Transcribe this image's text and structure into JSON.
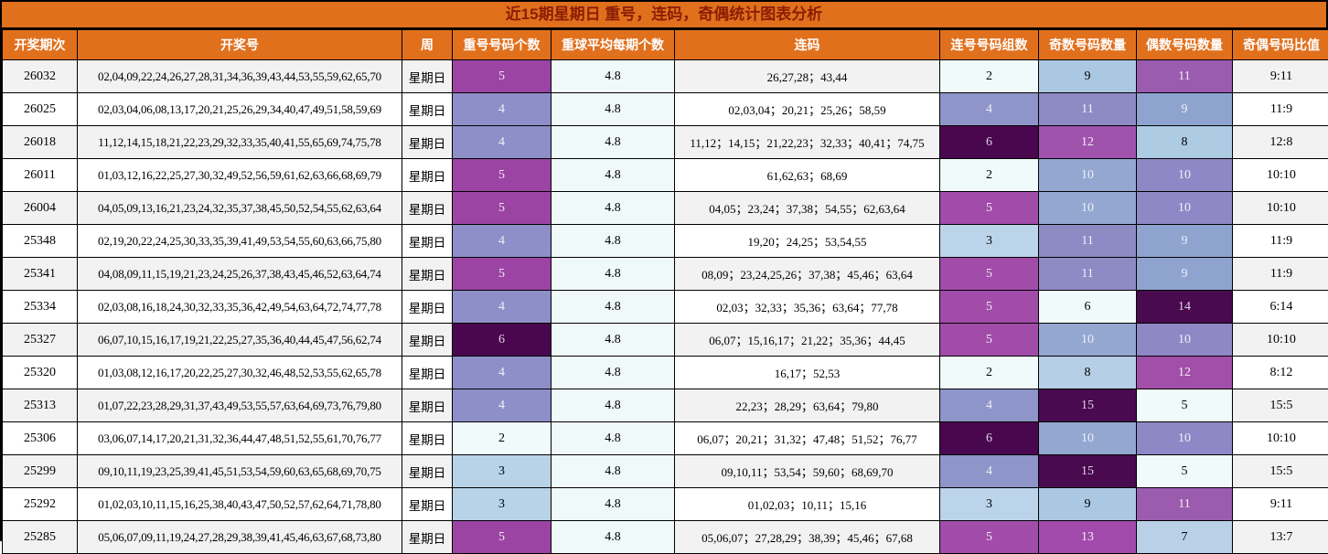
{
  "chart_data": {
    "type": "table",
    "title": "近15期星期日 重号，连码，奇偶统计图表分析",
    "palette": {
      "header_bg": "#e1701d",
      "title_text": "#8b1e04",
      "header_text": "#ffffff",
      "row_stripe": "#f2f2f2",
      "avg_col_bg": "#eff9fa",
      "grid_border": "#000000",
      "scale_low": "#f0fafa",
      "scale_mid_blue": "#b8d2e8",
      "scale_mid_purple": "#9c44a4",
      "scale_high_dark": "#490a50"
    },
    "columns": [
      "开奖期次",
      "开奖号",
      "周",
      "重号号码个数",
      "重球平均每期个数",
      "连码",
      "连号号码组数",
      "奇数号码数量",
      "偶数号码数量",
      "奇偶号码比值"
    ],
    "rows": [
      {
        "period": "26032",
        "numbers": "02,04,09,22,24,26,27,28,31,34,36,39,43,44,53,55,59,62,65,70",
        "week": "星期日",
        "repeat": {
          "v": "5",
          "bg": "#9c44a4",
          "fg": "#f2eaf4"
        },
        "avg": "4.8",
        "consecutive": "26,27,28；43,44",
        "group": {
          "v": "2",
          "bg": "#f0fafa",
          "fg": "#000000"
        },
        "odd": {
          "v": "9",
          "bg": "#abc8e3",
          "fg": "#000000"
        },
        "even": {
          "v": "11",
          "bg": "#9b5cb0",
          "fg": "#f2eaf4"
        },
        "ratio": "9:11"
      },
      {
        "period": "26025",
        "numbers": "02,03,04,06,08,13,17,20,21,25,26,29,34,40,47,49,51,58,59,69",
        "week": "星期日",
        "repeat": {
          "v": "4",
          "bg": "#8e8fc9",
          "fg": "#eef0f8"
        },
        "avg": "4.8",
        "consecutive": "02,03,04；20,21；25,26；58,59",
        "group": {
          "v": "4",
          "bg": "#8d95c9",
          "fg": "#eef0f8"
        },
        "odd": {
          "v": "11",
          "bg": "#8d8ac4",
          "fg": "#eef0f8"
        },
        "even": {
          "v": "9",
          "bg": "#8fa3cf",
          "fg": "#eef0f8"
        },
        "ratio": "11:9"
      },
      {
        "period": "26018",
        "numbers": "11,12,14,15,18,21,22,23,29,32,33,35,40,41,55,65,69,74,75,78",
        "week": "星期日",
        "repeat": {
          "v": "4",
          "bg": "#8e8fc9",
          "fg": "#eef0f8"
        },
        "avg": "4.8",
        "consecutive": "11,12；14,15；21,22,23；32,33；40,41；74,75",
        "group": {
          "v": "6",
          "bg": "#49074f",
          "fg": "#ddd3e0"
        },
        "odd": {
          "v": "12",
          "bg": "#a053ad",
          "fg": "#f2eaf4"
        },
        "even": {
          "v": "8",
          "bg": "#aecbe4",
          "fg": "#000000"
        },
        "ratio": "12:8"
      },
      {
        "period": "26011",
        "numbers": "01,03,12,16,22,25,27,30,32,49,52,56,59,61,62,63,66,68,69,79",
        "week": "星期日",
        "repeat": {
          "v": "5",
          "bg": "#9c44a4",
          "fg": "#f2eaf4"
        },
        "avg": "4.8",
        "consecutive": "61,62,63；68,69",
        "group": {
          "v": "2",
          "bg": "#f0fafa",
          "fg": "#000000"
        },
        "odd": {
          "v": "10",
          "bg": "#93a7d1",
          "fg": "#eef0f8"
        },
        "even": {
          "v": "10",
          "bg": "#9088c6",
          "fg": "#eef0f8"
        },
        "ratio": "10:10"
      },
      {
        "period": "26004",
        "numbers": "04,05,09,13,16,21,23,24,32,35,37,38,45,50,52,54,55,62,63,64",
        "week": "星期日",
        "repeat": {
          "v": "5",
          "bg": "#9c44a4",
          "fg": "#f2eaf4"
        },
        "avg": "4.8",
        "consecutive": "04,05；23,24；37,38；54,55；62,63,64",
        "group": {
          "v": "5",
          "bg": "#a24caa",
          "fg": "#f2eaf4"
        },
        "odd": {
          "v": "10",
          "bg": "#93a7d1",
          "fg": "#eef0f8"
        },
        "even": {
          "v": "10",
          "bg": "#9088c6",
          "fg": "#eef0f8"
        },
        "ratio": "10:10"
      },
      {
        "period": "25348",
        "numbers": "02,19,20,22,24,25,30,33,35,39,41,49,53,54,55,60,63,66,75,80",
        "week": "星期日",
        "repeat": {
          "v": "4",
          "bg": "#8e8fc9",
          "fg": "#eef0f8"
        },
        "avg": "4.8",
        "consecutive": "19,20；24,25；53,54,55",
        "group": {
          "v": "3",
          "bg": "#bcd4e9",
          "fg": "#000000"
        },
        "odd": {
          "v": "11",
          "bg": "#8d8ac4",
          "fg": "#eef0f8"
        },
        "even": {
          "v": "9",
          "bg": "#8fa3cf",
          "fg": "#eef0f8"
        },
        "ratio": "11:9"
      },
      {
        "period": "25341",
        "numbers": "04,08,09,11,15,19,21,23,24,25,26,37,38,43,45,46,52,63,64,74",
        "week": "星期日",
        "repeat": {
          "v": "5",
          "bg": "#9c44a4",
          "fg": "#f2eaf4"
        },
        "avg": "4.8",
        "consecutive": "08,09；23,24,25,26；37,38；45,46；63,64",
        "group": {
          "v": "5",
          "bg": "#a24caa",
          "fg": "#f2eaf4"
        },
        "odd": {
          "v": "11",
          "bg": "#8d8ac4",
          "fg": "#eef0f8"
        },
        "even": {
          "v": "9",
          "bg": "#8fa3cf",
          "fg": "#eef0f8"
        },
        "ratio": "11:9"
      },
      {
        "period": "25334",
        "numbers": "02,03,08,16,18,24,30,32,33,35,36,42,49,54,63,64,72,74,77,78",
        "week": "星期日",
        "repeat": {
          "v": "4",
          "bg": "#8e8fc9",
          "fg": "#eef0f8"
        },
        "avg": "4.8",
        "consecutive": "02,03；32,33；35,36；63,64；77,78",
        "group": {
          "v": "5",
          "bg": "#a24caa",
          "fg": "#f2eaf4"
        },
        "odd": {
          "v": "6",
          "bg": "#f0fafa",
          "fg": "#000000"
        },
        "even": {
          "v": "14",
          "bg": "#490a50",
          "fg": "#ddd3e0"
        },
        "ratio": "6:14"
      },
      {
        "period": "25327",
        "numbers": "06,07,10,15,16,17,19,21,22,25,27,35,36,40,44,45,47,56,62,74",
        "week": "星期日",
        "repeat": {
          "v": "6",
          "bg": "#4b0650",
          "fg": "#ddd3e0"
        },
        "avg": "4.8",
        "consecutive": "06,07；15,16,17；21,22；35,36；44,45",
        "group": {
          "v": "5",
          "bg": "#a24caa",
          "fg": "#f2eaf4"
        },
        "odd": {
          "v": "10",
          "bg": "#93a7d1",
          "fg": "#eef0f8"
        },
        "even": {
          "v": "10",
          "bg": "#9088c6",
          "fg": "#eef0f8"
        },
        "ratio": "10:10"
      },
      {
        "period": "25320",
        "numbers": "01,03,08,12,16,17,20,22,25,27,30,32,46,48,52,53,55,62,65,78",
        "week": "星期日",
        "repeat": {
          "v": "4",
          "bg": "#8e8fc9",
          "fg": "#eef0f8"
        },
        "avg": "4.8",
        "consecutive": "16,17；52,53",
        "group": {
          "v": "2",
          "bg": "#f0fafa",
          "fg": "#000000"
        },
        "odd": {
          "v": "8",
          "bg": "#b6cfe6",
          "fg": "#000000"
        },
        "even": {
          "v": "12",
          "bg": "#a24fa9",
          "fg": "#f2eaf4"
        },
        "ratio": "8:12"
      },
      {
        "period": "25313",
        "numbers": "01,07,22,23,28,29,31,37,43,49,53,55,57,63,64,69,73,76,79,80",
        "week": "星期日",
        "repeat": {
          "v": "4",
          "bg": "#8e8fc9",
          "fg": "#eef0f8"
        },
        "avg": "4.8",
        "consecutive": "22,23；28,29；63,64；79,80",
        "group": {
          "v": "4",
          "bg": "#8d95c9",
          "fg": "#eef0f8"
        },
        "odd": {
          "v": "15",
          "bg": "#490a50",
          "fg": "#ddd3e0"
        },
        "even": {
          "v": "5",
          "bg": "#f0fafa",
          "fg": "#000000"
        },
        "ratio": "15:5"
      },
      {
        "period": "25306",
        "numbers": "03,06,07,14,17,20,21,31,32,36,44,47,48,51,52,55,61,70,76,77",
        "week": "星期日",
        "repeat": {
          "v": "2",
          "bg": "#f0fafa",
          "fg": "#000000"
        },
        "avg": "4.8",
        "consecutive": "06,07；20,21；31,32；47,48；51,52；76,77",
        "group": {
          "v": "6",
          "bg": "#49074f",
          "fg": "#ddd3e0"
        },
        "odd": {
          "v": "10",
          "bg": "#93a7d1",
          "fg": "#eef0f8"
        },
        "even": {
          "v": "10",
          "bg": "#9088c6",
          "fg": "#eef0f8"
        },
        "ratio": "10:10"
      },
      {
        "period": "25299",
        "numbers": "09,10,11,19,23,25,39,41,45,51,53,54,59,60,63,65,68,69,70,75",
        "week": "星期日",
        "repeat": {
          "v": "3",
          "bg": "#b8d2e8",
          "fg": "#000000"
        },
        "avg": "4.8",
        "consecutive": "09,10,11；53,54；59,60；68,69,70",
        "group": {
          "v": "4",
          "bg": "#8d95c9",
          "fg": "#eef0f8"
        },
        "odd": {
          "v": "15",
          "bg": "#490a50",
          "fg": "#ddd3e0"
        },
        "even": {
          "v": "5",
          "bg": "#f0fafa",
          "fg": "#000000"
        },
        "ratio": "15:5"
      },
      {
        "period": "25292",
        "numbers": "01,02,03,10,11,15,16,25,38,40,43,47,50,52,57,62,64,71,78,80",
        "week": "星期日",
        "repeat": {
          "v": "3",
          "bg": "#b8d2e8",
          "fg": "#000000"
        },
        "avg": "4.8",
        "consecutive": "01,02,03；10,11；15,16",
        "group": {
          "v": "3",
          "bg": "#bcd4e9",
          "fg": "#000000"
        },
        "odd": {
          "v": "9",
          "bg": "#abc8e3",
          "fg": "#000000"
        },
        "even": {
          "v": "11",
          "bg": "#9b5cb0",
          "fg": "#f2eaf4"
        },
        "ratio": "9:11"
      },
      {
        "period": "25285",
        "numbers": "05,06,07,09,11,19,24,27,28,29,38,39,41,45,46,63,67,68,73,80",
        "week": "星期日",
        "repeat": {
          "v": "5",
          "bg": "#9c44a4",
          "fg": "#f2eaf4"
        },
        "avg": "4.8",
        "consecutive": "05,06,07；27,28,29；38,39；45,46；67,68",
        "group": {
          "v": "5",
          "bg": "#a24caa",
          "fg": "#f2eaf4"
        },
        "odd": {
          "v": "13",
          "bg": "#a14aab",
          "fg": "#f2eaf4"
        },
        "even": {
          "v": "7",
          "bg": "#b9d0e7",
          "fg": "#000000"
        },
        "ratio": "13:7"
      }
    ]
  }
}
